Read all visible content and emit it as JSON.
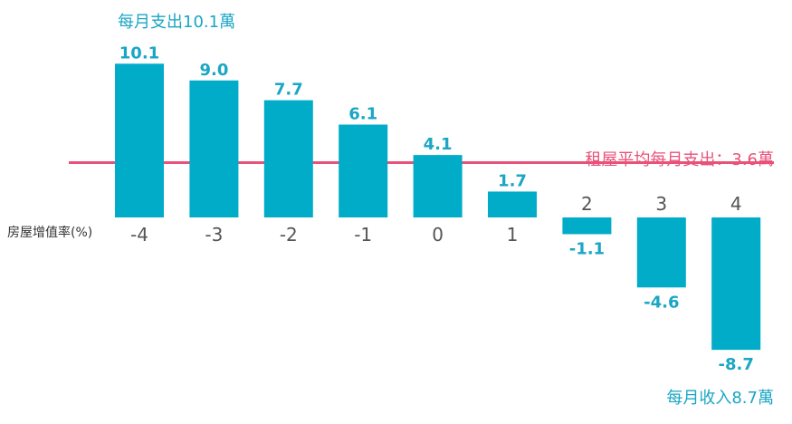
{
  "annotations": {
    "top": "每月支出10.1萬",
    "bottom": "每月收入8.7萬",
    "rent_line": "租屋平均每月支出：3.6萬"
  },
  "chart_data": {
    "type": "bar",
    "xlabel": "房屋增值率(%)",
    "categories": [
      "-4",
      "-3",
      "-2",
      "-1",
      "0",
      "1",
      "2",
      "3",
      "4"
    ],
    "values": [
      10.1,
      9.0,
      7.7,
      6.1,
      4.1,
      1.7,
      -1.1,
      -4.6,
      -8.7
    ],
    "value_labels": [
      "10.1",
      "9.0",
      "7.7",
      "6.1",
      "4.1",
      "1.7",
      "-1.1",
      "-4.6",
      "-8.7"
    ],
    "reference_line": {
      "value": 3.6,
      "label": "租屋平均每月支出：3.6萬",
      "color": "#e8527a"
    },
    "bar_color": "#00acc8",
    "label_color": "#1aa6c4",
    "ylim": [
      -8.7,
      10.1
    ],
    "grid": false
  }
}
